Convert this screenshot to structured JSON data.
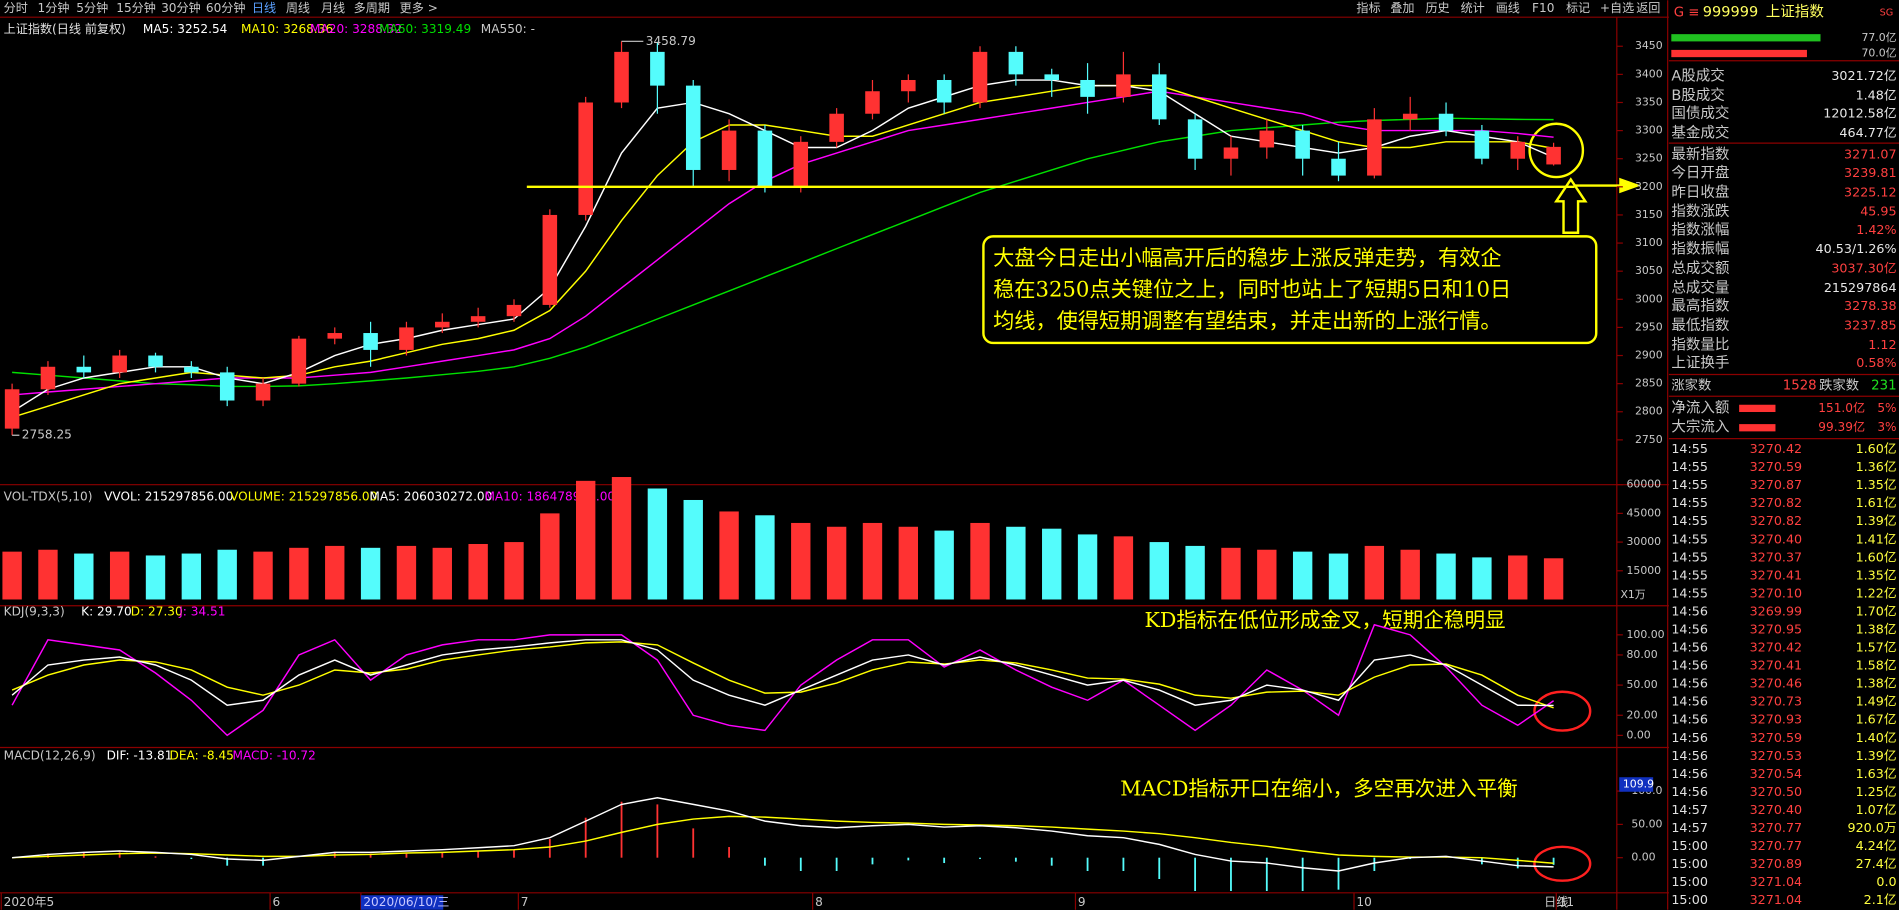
{
  "toolbar": {
    "tabs": [
      "分时",
      "1分钟",
      "5分钟",
      "15分钟",
      "30分钟",
      "60分钟",
      "日线",
      "周线",
      "月线",
      "多周期",
      "更多 >"
    ],
    "buttons": [
      "指标",
      "叠加",
      "历史",
      "统计",
      "画线",
      "F10",
      "标记",
      "+自选",
      "返回"
    ]
  },
  "main": {
    "title": "上证指数(日线 前复权)",
    "ma_labels": [
      "MA5: 3252.54",
      "MA10: 3268.36",
      "MA20: 3288.32",
      "MA60: 3319.49",
      "MA550: -"
    ],
    "high_label": "3458.79",
    "low_label": "2758.25",
    "open": [
      2770,
      2840,
      2880,
      2870,
      2900,
      2880,
      2870,
      2820,
      2850,
      2930,
      2940,
      2910,
      2950,
      2960,
      2970,
      2990,
      3150,
      3350,
      3440,
      3380,
      3230,
      3300,
      3200,
      3280,
      3330,
      3370,
      3390,
      3350,
      3440,
      3400,
      3390,
      3360,
      3400,
      3320,
      3250,
      3270,
      3300,
      3250,
      3220,
      3320,
      3330,
      3300,
      3250,
      3239.81
    ],
    "high": [
      2850,
      2890,
      2900,
      2910,
      2905,
      2890,
      2880,
      2860,
      2935,
      2950,
      2960,
      2960,
      2975,
      2985,
      3000,
      3160,
      3360,
      3458.79,
      3458,
      3390,
      3320,
      3310,
      3290,
      3340,
      3390,
      3400,
      3400,
      3450,
      3450,
      3410,
      3420,
      3440,
      3420,
      3330,
      3290,
      3320,
      3310,
      3280,
      3340,
      3360,
      3350,
      3310,
      3290,
      3278.38
    ],
    "low": [
      2758.25,
      2830,
      2860,
      2860,
      2870,
      2860,
      2810,
      2810,
      2845,
      2920,
      2880,
      2900,
      2940,
      2950,
      2960,
      2985,
      3140,
      3340,
      3330,
      3200,
      3210,
      3190,
      3190,
      3270,
      3320,
      3350,
      3330,
      3340,
      3380,
      3360,
      3330,
      3350,
      3310,
      3230,
      3220,
      3250,
      3220,
      3210,
      3215,
      3300,
      3290,
      3240,
      3230,
      3237.85
    ],
    "close": [
      2840,
      2880,
      2870,
      2900,
      2880,
      2870,
      2820,
      2850,
      2930,
      2940,
      2910,
      2950,
      2960,
      2970,
      2990,
      3150,
      3350,
      3440,
      3380,
      3230,
      3300,
      3200,
      3280,
      3330,
      3370,
      3390,
      3350,
      3440,
      3400,
      3390,
      3360,
      3400,
      3320,
      3250,
      3270,
      3300,
      3250,
      3220,
      3320,
      3330,
      3300,
      3250,
      3280,
      3271.07
    ],
    "ma5": [
      2800,
      2840,
      2860,
      2870,
      2880,
      2880,
      2860,
      2850,
      2870,
      2900,
      2920,
      2930,
      2945,
      2955,
      2965,
      3020,
      3130,
      3260,
      3340,
      3350,
      3330,
      3300,
      3270,
      3270,
      3300,
      3340,
      3360,
      3380,
      3390,
      3390,
      3380,
      3380,
      3370,
      3330,
      3290,
      3280,
      3270,
      3260,
      3270,
      3290,
      3300,
      3290,
      3280,
      3252.54
    ],
    "ma10": [
      2790,
      2810,
      2830,
      2850,
      2860,
      2870,
      2865,
      2860,
      2865,
      2880,
      2890,
      2905,
      2920,
      2930,
      2945,
      2980,
      3050,
      3140,
      3220,
      3280,
      3310,
      3310,
      3300,
      3290,
      3290,
      3310,
      3330,
      3350,
      3360,
      3370,
      3380,
      3380,
      3380,
      3360,
      3340,
      3320,
      3300,
      3280,
      3270,
      3270,
      3280,
      3280,
      3280,
      3268.36
    ],
    "ma20": [
      2830,
      2835,
      2840,
      2845,
      2850,
      2855,
      2860,
      2860,
      2860,
      2865,
      2870,
      2880,
      2890,
      2900,
      2910,
      2930,
      2970,
      3020,
      3070,
      3120,
      3170,
      3210,
      3240,
      3260,
      3280,
      3300,
      3310,
      3320,
      3330,
      3340,
      3350,
      3360,
      3370,
      3360,
      3350,
      3340,
      3330,
      3310,
      3300,
      3300,
      3300,
      3300,
      3295,
      3288.32
    ],
    "ma60": [
      2870,
      2865,
      2860,
      2855,
      2850,
      2848,
      2845,
      2845,
      2846,
      2850,
      2855,
      2860,
      2866,
      2872,
      2880,
      2895,
      2915,
      2940,
      2965,
      2990,
      3015,
      3040,
      3065,
      3090,
      3115,
      3140,
      3165,
      3190,
      3210,
      3230,
      3250,
      3265,
      3280,
      3290,
      3300,
      3305,
      3310,
      3315,
      3318,
      3320,
      3322,
      3321,
      3320,
      3319.49
    ],
    "yticks": [
      2750,
      2800,
      2850,
      2900,
      2950,
      3000,
      3050,
      3100,
      3150,
      3200,
      3250,
      3300,
      3350,
      3400,
      3450
    ],
    "support_level": 3200
  },
  "volume": {
    "header": [
      "VOL-TDX(5,10)",
      "VVOL: 215297856.00",
      "VOLUME: 215297856.00",
      "MA5: 206030272.00",
      "MA10: 186478976.00"
    ],
    "values": [
      25000,
      26000,
      24000,
      25000,
      23000,
      24000,
      26000,
      25000,
      27000,
      28000,
      27000,
      28000,
      27000,
      29000,
      30000,
      45000,
      62000,
      64000,
      58000,
      52000,
      46000,
      44000,
      40000,
      38000,
      40000,
      38000,
      36000,
      40000,
      38000,
      37000,
      34000,
      33000,
      30000,
      28000,
      27000,
      26000,
      25000,
      24000,
      28000,
      26000,
      24000,
      22000,
      23000,
      21529.79
    ],
    "yticks": [
      15000,
      30000,
      45000,
      60000
    ],
    "unit": "X1万"
  },
  "kdj": {
    "header": [
      "KDJ(9,3,3)",
      "K: 29.70",
      "D: 27.30",
      "J: 34.51"
    ],
    "k": [
      40,
      70,
      75,
      78,
      70,
      55,
      30,
      35,
      60,
      75,
      60,
      70,
      80,
      85,
      88,
      92,
      95,
      95,
      85,
      55,
      40,
      30,
      45,
      60,
      75,
      80,
      70,
      78,
      70,
      60,
      50,
      55,
      45,
      30,
      35,
      50,
      45,
      35,
      75,
      80,
      70,
      50,
      30,
      29.7
    ],
    "d": [
      45,
      60,
      70,
      75,
      73,
      65,
      48,
      40,
      50,
      65,
      62,
      66,
      75,
      80,
      85,
      88,
      92,
      93,
      90,
      72,
      55,
      42,
      43,
      52,
      65,
      73,
      71,
      75,
      72,
      65,
      57,
      56,
      51,
      40,
      37,
      43,
      44,
      40,
      58,
      70,
      71,
      60,
      40,
      27.3
    ],
    "j": [
      30,
      95,
      90,
      85,
      62,
      35,
      0,
      25,
      80,
      95,
      55,
      80,
      90,
      95,
      95,
      100,
      100,
      100,
      75,
      20,
      10,
      5,
      50,
      75,
      95,
      95,
      68,
      85,
      65,
      48,
      35,
      55,
      30,
      5,
      30,
      65,
      45,
      20,
      110,
      100,
      68,
      30,
      10,
      34.51
    ],
    "yticks": [
      {
        "value": 0,
        "label": "0.00"
      },
      {
        "value": 20,
        "label": "20.00"
      },
      {
        "value": 50,
        "label": "50.00"
      },
      {
        "value": 80,
        "label": "80.00"
      },
      {
        "value": 100,
        "label": "100.00"
      }
    ],
    "note": "KD指标在低位形成金叉，短期企稳明显"
  },
  "macd": {
    "header": [
      "MACD(12,26,9)",
      "DIF: -13.81",
      "DEA: -8.45",
      "MACD: -10.72"
    ],
    "dif": [
      0,
      5,
      8,
      10,
      8,
      5,
      -2,
      -4,
      2,
      8,
      8,
      10,
      12,
      15,
      18,
      30,
      55,
      80,
      90,
      80,
      70,
      55,
      48,
      45,
      48,
      50,
      46,
      48,
      45,
      40,
      33,
      30,
      20,
      5,
      -5,
      -8,
      -15,
      -20,
      -8,
      0,
      2,
      -5,
      -12,
      -13.81
    ],
    "dea": [
      0,
      2,
      4,
      6,
      7,
      6,
      4,
      2,
      2,
      4,
      5,
      7,
      8,
      10,
      12,
      16,
      25,
      38,
      50,
      58,
      62,
      61,
      58,
      55,
      53,
      52,
      50,
      49,
      48,
      46,
      43,
      40,
      36,
      30,
      23,
      17,
      10,
      4,
      2,
      1,
      1,
      0,
      -4,
      -8.45
    ],
    "bars": [
      0,
      6,
      8,
      8,
      2,
      -2,
      -12,
      -12,
      0,
      8,
      6,
      6,
      8,
      10,
      12,
      28,
      60,
      84,
      80,
      44,
      16,
      -12,
      -20,
      -20,
      -10,
      -4,
      -8,
      -2,
      -6,
      -12,
      -20,
      -20,
      -32,
      -50,
      -50,
      -50,
      -50,
      -48,
      -20,
      -2,
      2,
      -10,
      -16,
      -10.72
    ],
    "yticks": [
      {
        "value": 0,
        "label": "0.00"
      },
      {
        "value": 50,
        "label": "50.00"
      },
      {
        "value": 100,
        "label": "100.0"
      }
    ],
    "marker": {
      "value": 109.9,
      "label": "109.9"
    },
    "note": "MACD指标开口在缩小，多空再次进入平衡"
  },
  "x_labels": [
    "2020年5",
    "6",
    "2020/06/10/三",
    "7",
    "8",
    "9",
    "10",
    "11"
  ],
  "axis_footer": "日线",
  "annotation": [
    "大盘今日走出小幅高开后的稳步上涨反弹走势，有效企",
    "稳在3250点关键位之上，同时也站上了短期5日和10日",
    "均线，使得短期调整有望结束，并走出新的上涨行情。"
  ],
  "sidebar": {
    "code": "999999",
    "name": "上证指数",
    "badge": "SG",
    "flow_bars": [
      {
        "value": 77.0,
        "label": "77.0亿"
      },
      {
        "value": 70.0,
        "label": "70.0亿"
      }
    ],
    "stats": [
      [
        "A股成交",
        "3021.72亿"
      ],
      [
        "B股成交",
        "1.48亿"
      ],
      [
        "国债成交",
        "12012.58亿"
      ],
      [
        "基金成交",
        "464.77亿"
      ],
      [
        "最新指数",
        "3271.07"
      ],
      [
        "今日开盘",
        "3239.81"
      ],
      [
        "昨日收盘",
        "3225.12"
      ],
      [
        "指数涨跌",
        "45.95"
      ],
      [
        "指数涨幅",
        "1.42%"
      ],
      [
        "指数振幅",
        "40.53/1.26%"
      ],
      [
        "总成交额",
        "3037.30亿"
      ],
      [
        "总成交量",
        "215297864"
      ],
      [
        "最高指数",
        "3278.38"
      ],
      [
        "最低指数",
        "3237.85"
      ],
      [
        "指数量比",
        "1.12"
      ],
      [
        "上证换手",
        "0.58%"
      ]
    ],
    "breadth": [
      "涨家数",
      "1528",
      "跌家数",
      "231"
    ],
    "flows": [
      [
        "净流入额",
        "151.0亿",
        "5%"
      ],
      [
        "大宗流入",
        "99.39亿",
        "3%"
      ]
    ],
    "trades": [
      [
        "14:55",
        "3270.42",
        "1.60亿"
      ],
      [
        "14:55",
        "3270.59",
        "1.36亿"
      ],
      [
        "14:55",
        "3270.87",
        "1.35亿"
      ],
      [
        "14:55",
        "3270.82",
        "1.61亿"
      ],
      [
        "14:55",
        "3270.82",
        "1.39亿"
      ],
      [
        "14:55",
        "3270.40",
        "1.41亿"
      ],
      [
        "14:55",
        "3270.37",
        "1.60亿"
      ],
      [
        "14:55",
        "3270.41",
        "1.35亿"
      ],
      [
        "14:55",
        "3270.10",
        "1.22亿"
      ],
      [
        "14:56",
        "3269.99",
        "1.70亿"
      ],
      [
        "14:56",
        "3270.95",
        "1.38亿"
      ],
      [
        "14:56",
        "3270.42",
        "1.57亿"
      ],
      [
        "14:56",
        "3270.41",
        "1.58亿"
      ],
      [
        "14:56",
        "3270.46",
        "1.38亿"
      ],
      [
        "14:56",
        "3270.73",
        "1.49亿"
      ],
      [
        "14:56",
        "3270.93",
        "1.67亿"
      ],
      [
        "14:56",
        "3270.59",
        "1.40亿"
      ],
      [
        "14:56",
        "3270.53",
        "1.39亿"
      ],
      [
        "14:56",
        "3270.54",
        "1.63亿"
      ],
      [
        "14:56",
        "3270.50",
        "1.25亿"
      ],
      [
        "14:57",
        "3270.40",
        "1.07亿"
      ],
      [
        "14:57",
        "3270.77",
        "920.0万"
      ],
      [
        "15:00",
        "3270.77",
        "4.24亿"
      ],
      [
        "15:00",
        "3270.89",
        "27.4亿"
      ],
      [
        "15:00",
        "3271.04",
        "0.0"
      ],
      [
        "15:00",
        "3271.04",
        "2.1亿"
      ]
    ]
  }
}
